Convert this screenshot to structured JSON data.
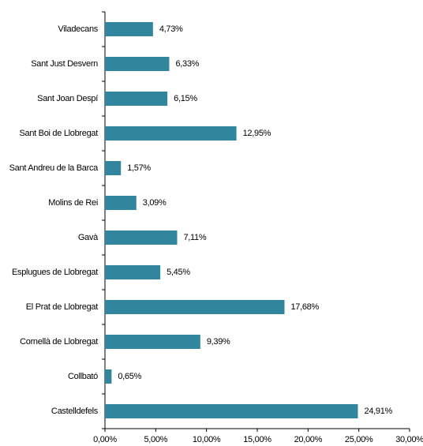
{
  "chart_data": {
    "type": "bar",
    "orientation": "horizontal",
    "categories": [
      "Viladecans",
      "Sant Just Desvern",
      "Sant Joan Despí",
      "Sant Boi de Llobregat",
      "Sant Andreu de la Barca",
      "Molins de Rei",
      "Gavà",
      "Esplugues de Llobregat",
      "El Prat de Llobregat",
      "Cornellà de Llobregat",
      "Collbató",
      "Castelldefels"
    ],
    "values": [
      4.73,
      6.33,
      6.15,
      12.95,
      1.57,
      3.09,
      7.11,
      5.45,
      17.68,
      9.39,
      0.65,
      24.91
    ],
    "value_labels": [
      "4,73%",
      "6,33%",
      "6,15%",
      "12,95%",
      "1,57%",
      "3,09%",
      "7,11%",
      "5,45%",
      "17,68%",
      "9,39%",
      "0,65%",
      "24,91%"
    ],
    "color": "#31859c",
    "xlim": [
      0,
      30
    ],
    "xticks": [
      {
        "value": 0,
        "label": "0,00%"
      },
      {
        "value": 5,
        "label": "5,00%"
      },
      {
        "value": 10,
        "label": "10,00%"
      },
      {
        "value": 15,
        "label": "15,00%"
      },
      {
        "value": 20,
        "label": "20,00%"
      },
      {
        "value": 25,
        "label": "25,00%"
      },
      {
        "value": 30,
        "label": "30,00%"
      }
    ],
    "grid": false
  }
}
